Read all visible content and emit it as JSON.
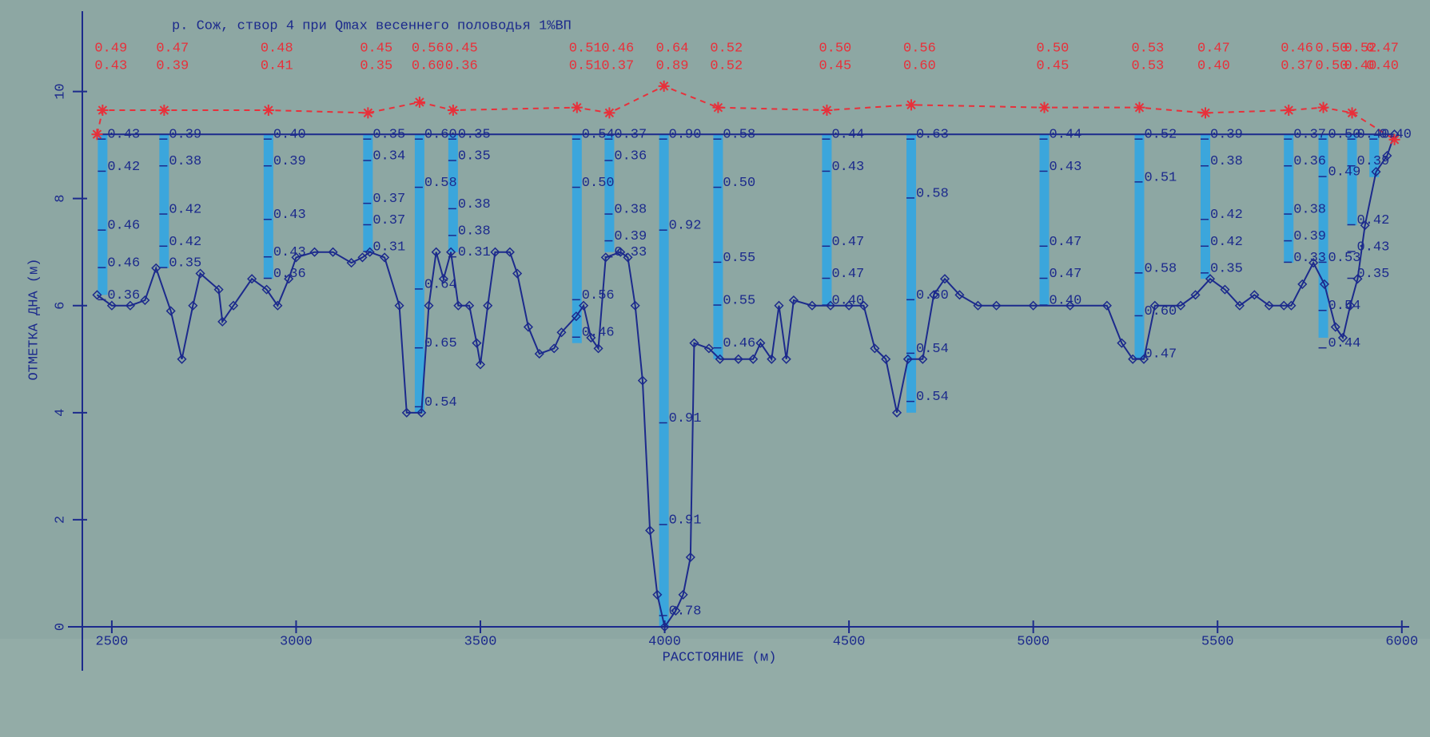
{
  "chart_data": {
    "type": "line",
    "title": "р. Сож, створ  4 при Qmax весеннего половодья 1%ВП",
    "x_label": "РАССТОЯНИЕ  (м)",
    "y_label": "ОТМЕТКА ДНА (м)",
    "xlim": [
      2420,
      6020
    ],
    "ylim": [
      0,
      11.5
    ],
    "xticks": [
      2500,
      3000,
      3500,
      4000,
      4500,
      5000,
      5500,
      6000
    ],
    "yticks": [
      0,
      2,
      4,
      6,
      8,
      10
    ],
    "series": [
      {
        "color": "#1c2a8c",
        "marker": "diamond",
        "x": [
          2460,
          2500,
          2550,
          2590,
          2620,
          2660,
          2690,
          2720,
          2740,
          2790,
          2800,
          2830,
          2880,
          2920,
          2950,
          2980,
          3000,
          3050,
          3100,
          3150,
          3180,
          3200,
          3240,
          3280,
          3300,
          3340,
          3360,
          3380,
          3400,
          3420,
          3440,
          3470,
          3490,
          3500,
          3520,
          3540,
          3580,
          3600,
          3630,
          3660,
          3700,
          3720,
          3760,
          3780,
          3800,
          3820,
          3840,
          3880,
          3900,
          3920,
          3940,
          3960,
          3980,
          4000,
          4030,
          4050,
          4070,
          4080,
          4120,
          4150,
          4200,
          4240,
          4260,
          4290,
          4310,
          4330,
          4350,
          4400,
          4450,
          4500,
          4540,
          4570,
          4600,
          4630,
          4660,
          4700,
          4730,
          4760,
          4800,
          4850,
          4900,
          5000,
          5100,
          5200,
          5240,
          5270,
          5300,
          5330,
          5400,
          5440,
          5480,
          5520,
          5560,
          5600,
          5640,
          5680,
          5700,
          5730,
          5760,
          5790,
          5820,
          5840,
          5860,
          5880,
          5900,
          5930,
          5960,
          5980
        ],
        "values": [
          6.2,
          6.0,
          6.0,
          6.1,
          6.7,
          5.9,
          5.0,
          6.0,
          6.6,
          6.3,
          5.7,
          6.0,
          6.5,
          6.3,
          6.0,
          6.5,
          6.9,
          7.0,
          7.0,
          6.8,
          6.9,
          7.0,
          6.9,
          6.0,
          4.0,
          4.0,
          6.0,
          7.0,
          6.5,
          7.0,
          6.0,
          6.0,
          5.3,
          4.9,
          6.0,
          7.0,
          7.0,
          6.6,
          5.6,
          5.1,
          5.2,
          5.5,
          5.8,
          6.0,
          5.4,
          5.2,
          6.9,
          7.0,
          6.9,
          6.0,
          4.6,
          1.8,
          0.6,
          0.0,
          0.3,
          0.6,
          1.3,
          5.3,
          5.2,
          5.0,
          5.0,
          5.0,
          5.3,
          5.0,
          6.0,
          5.0,
          6.1,
          6.0,
          6.0,
          6.0,
          6.0,
          5.2,
          5.0,
          4.0,
          5.0,
          5.0,
          6.2,
          6.5,
          6.2,
          6.0,
          6.0,
          6.0,
          6.0,
          6.0,
          5.3,
          5.0,
          5.0,
          6.0,
          6.0,
          6.2,
          6.5,
          6.3,
          6.0,
          6.2,
          6.0,
          6.0,
          6.0,
          6.4,
          6.8,
          6.4,
          5.6,
          5.4,
          6.0,
          6.5,
          7.5,
          8.5,
          8.8,
          9.2
        ]
      },
      {
        "color": "#1c2a8c",
        "marker": "none",
        "x": [
          2460,
          5980
        ],
        "values": [
          9.2,
          9.2
        ]
      },
      {
        "color": "#e8303a",
        "marker": "star",
        "dash": true,
        "x": [
          2460,
          2475,
          2642,
          2925,
          3195,
          3335,
          3426,
          3762,
          3850,
          3998,
          4145,
          4440,
          4669,
          5030,
          5288,
          5467,
          5693,
          5787,
          5865,
          5980
        ],
        "values": [
          9.2,
          9.65,
          9.65,
          9.65,
          9.6,
          9.8,
          9.65,
          9.7,
          9.6,
          10.1,
          9.7,
          9.65,
          9.75,
          9.7,
          9.7,
          9.6,
          9.65,
          9.7,
          9.6,
          9.1
        ]
      }
    ],
    "verticals": [
      {
        "x": 2475,
        "bottom": 6.2,
        "top_values": [
          0.49,
          0.43
        ],
        "top_labels": [
          "0.49",
          "0.43"
        ],
        "depths": [
          9.2,
          8.6,
          7.5,
          6.8,
          6.2
        ],
        "values": [
          0.43,
          0.42,
          0.46,
          0.46,
          0.36
        ],
        "value_labels": [
          "0.43",
          "0.42",
          "0.46",
          "0.46",
          "0.36"
        ]
      },
      {
        "x": 2642,
        "bottom": 6.7,
        "top_values": [
          0.47,
          0.39
        ],
        "top_labels": [
          "0.47",
          "0.39"
        ],
        "depths": [
          9.2,
          8.7,
          7.8,
          7.2,
          6.8
        ],
        "values": [
          0.39,
          0.38,
          0.42,
          0.42,
          0.35
        ],
        "value_labels": [
          "0.39",
          "0.38",
          "0.42",
          "0.42",
          "0.35"
        ]
      },
      {
        "x": 2925,
        "bottom": 6.5,
        "top_values": [
          0.48,
          0.41
        ],
        "top_labels": [
          "0.48",
          "0.41"
        ],
        "depths": [
          9.2,
          8.7,
          7.7,
          7.0,
          6.6
        ],
        "values": [
          0.4,
          0.39,
          0.43,
          0.43,
          0.36
        ],
        "value_labels": [
          "0.40",
          "0.39",
          "0.43",
          "0.43",
          "0.36"
        ]
      },
      {
        "x": 3195,
        "bottom": 7.0,
        "top_values": [
          0.45,
          0.35
        ],
        "top_labels": [
          "0.45",
          "0.35"
        ],
        "depths": [
          9.2,
          8.8,
          8.0,
          7.6,
          7.1
        ],
        "values": [
          0.35,
          0.34,
          0.37,
          0.37,
          0.31
        ],
        "value_labels": [
          "0.35",
          "0.34",
          "0.37",
          "0.37",
          "0.31"
        ]
      },
      {
        "x": 3335,
        "bottom": 4.0,
        "top_values": [
          0.56,
          0.6
        ],
        "top_labels": [
          "0.56",
          "0.60"
        ],
        "depths": [
          9.2,
          8.3,
          6.4,
          5.3,
          4.2
        ],
        "values": [
          0.6,
          0.58,
          0.64,
          0.65,
          0.54
        ],
        "value_labels": [
          "0.60",
          "0.58",
          "0.64",
          "0.65",
          "0.54"
        ]
      },
      {
        "x": 3426,
        "bottom": 7.0,
        "top_values": [
          0.45,
          0.36
        ],
        "top_labels": [
          "0.45",
          "0.36"
        ],
        "depths": [
          9.2,
          8.8,
          7.9,
          7.4,
          7.0
        ],
        "values": [
          0.35,
          0.35,
          0.38,
          0.38,
          0.31
        ],
        "value_labels": [
          "0.35",
          "0.35",
          "0.38",
          "0.38",
          "0.31"
        ]
      },
      {
        "x": 3762,
        "bottom": 5.3,
        "top_values": [
          0.51,
          0.51
        ],
        "top_labels": [
          "0.51",
          "0.51"
        ],
        "depths": [
          9.2,
          8.3,
          6.2,
          5.5
        ],
        "values": [
          0.54,
          0.5,
          0.56,
          0.46
        ],
        "value_labels": [
          "0.54",
          "0.50",
          "0.56",
          "0.46"
        ]
      },
      {
        "x": 3850,
        "bottom": 7.0,
        "top_values": [
          0.46,
          0.37
        ],
        "top_labels": [
          "0.46",
          "0.37"
        ],
        "depths": [
          9.2,
          8.8,
          7.8,
          7.3,
          7.0
        ],
        "values": [
          0.37,
          0.36,
          0.38,
          0.39,
          0.33
        ],
        "value_labels": [
          "0.37",
          "0.36",
          "0.38",
          "0.39",
          "0.33"
        ]
      },
      {
        "x": 3998,
        "bottom": 0.0,
        "top_values": [
          0.64,
          0.89
        ],
        "top_labels": [
          "0.64",
          "0.89"
        ],
        "depths": [
          9.2,
          7.5,
          3.9,
          2.0,
          0.3
        ],
        "values": [
          0.9,
          0.92,
          0.91,
          0.91,
          0.78
        ],
        "value_labels": [
          "0.90",
          "0.92",
          "0.91",
          "0.91",
          "0.78"
        ]
      },
      {
        "x": 4145,
        "bottom": 5.0,
        "top_values": [
          0.52,
          0.52
        ],
        "top_labels": [
          "0.52",
          "0.52"
        ],
        "depths": [
          9.2,
          8.3,
          6.9,
          6.1,
          5.3
        ],
        "values": [
          0.58,
          0.5,
          0.55,
          0.55,
          0.46
        ],
        "value_labels": [
          "0.58",
          "0.50",
          "0.55",
          "0.55",
          "0.46"
        ]
      },
      {
        "x": 4440,
        "bottom": 6.0,
        "top_values": [
          0.5,
          0.45
        ],
        "top_labels": [
          "0.50",
          "0.45"
        ],
        "depths": [
          9.2,
          8.6,
          7.2,
          6.6,
          6.1
        ],
        "values": [
          0.44,
          0.43,
          0.47,
          0.47,
          0.4
        ],
        "value_labels": [
          "0.44",
          "0.43",
          "0.47",
          "0.47",
          "0.40"
        ]
      },
      {
        "x": 4669,
        "bottom": 4.0,
        "top_values": [
          0.56,
          0.6
        ],
        "top_labels": [
          "0.56",
          "0.60"
        ],
        "depths": [
          9.2,
          8.1,
          6.2,
          5.2,
          4.3
        ],
        "values": [
          0.63,
          0.58,
          0.6,
          0.54,
          0.54
        ],
        "value_labels": [
          "0.63",
          "0.58",
          "0.60",
          "0.54",
          "0.54"
        ]
      },
      {
        "x": 5030,
        "bottom": 6.0,
        "top_values": [
          0.5,
          0.45
        ],
        "top_labels": [
          "0.50",
          "0.45"
        ],
        "depths": [
          9.2,
          8.6,
          7.2,
          6.6,
          6.1
        ],
        "values": [
          0.44,
          0.43,
          0.47,
          0.47,
          0.4
        ],
        "value_labels": [
          "0.44",
          "0.43",
          "0.47",
          "0.47",
          "0.40"
        ]
      },
      {
        "x": 5288,
        "bottom": 5.0,
        "top_values": [
          0.53,
          0.53
        ],
        "top_labels": [
          "0.53",
          "0.53"
        ],
        "depths": [
          9.2,
          8.4,
          6.7,
          5.9,
          5.1
        ],
        "values": [
          0.52,
          0.51,
          0.58,
          0.6,
          0.47
        ],
        "value_labels": [
          "0.52",
          "0.51",
          "0.58",
          "0.60",
          "0.47"
        ]
      },
      {
        "x": 5467,
        "bottom": 6.5,
        "top_values": [
          0.47,
          0.4
        ],
        "top_labels": [
          "0.47",
          "0.40"
        ],
        "depths": [
          9.2,
          8.7,
          7.7,
          7.2,
          6.7
        ],
        "values": [
          0.39,
          0.38,
          0.42,
          0.42,
          0.35
        ],
        "value_labels": [
          "0.39",
          "0.38",
          "0.42",
          "0.42",
          "0.35"
        ]
      },
      {
        "x": 5693,
        "bottom": 6.8,
        "top_values": [
          0.46,
          0.37
        ],
        "top_labels": [
          "0.46",
          "0.37"
        ],
        "depths": [
          9.2,
          8.7,
          7.8,
          7.3,
          6.9
        ],
        "values": [
          0.37,
          0.36,
          0.38,
          0.39,
          0.33
        ],
        "value_labels": [
          "0.37",
          "0.36",
          "0.38",
          "0.39",
          "0.33"
        ]
      },
      {
        "x": 5787,
        "bottom": 5.4,
        "top_values": [
          0.5,
          0.5
        ],
        "top_labels": [
          "0.50",
          "0.50"
        ],
        "depths": [
          9.2,
          8.5,
          6.9,
          6.0,
          5.3
        ],
        "values": [
          0.5,
          0.49,
          0.53,
          0.54,
          0.44
        ],
        "value_labels": [
          "0.50",
          "0.49",
          "0.53",
          "0.54",
          "0.44"
        ]
      },
      {
        "x": 5865,
        "bottom": 7.5,
        "top_values": [
          0.52,
          0.4
        ],
        "top_labels": [
          "0.52",
          "0.40"
        ],
        "depths": [
          9.2,
          8.7,
          7.6,
          7.1,
          6.6
        ],
        "values": [
          0.4,
          0.39,
          0.42,
          0.43,
          0.35
        ],
        "value_labels": [
          "0.40",
          "0.39",
          "0.42",
          "0.43",
          "0.35"
        ]
      },
      {
        "x": 5925,
        "bottom": 8.4,
        "top_values": [
          0.47,
          0.4
        ],
        "top_labels": [
          "0.47",
          "0.40"
        ],
        "depths": [
          9.2
        ],
        "values": [
          0.4
        ],
        "value_labels": [
          "0.40"
        ]
      }
    ]
  }
}
